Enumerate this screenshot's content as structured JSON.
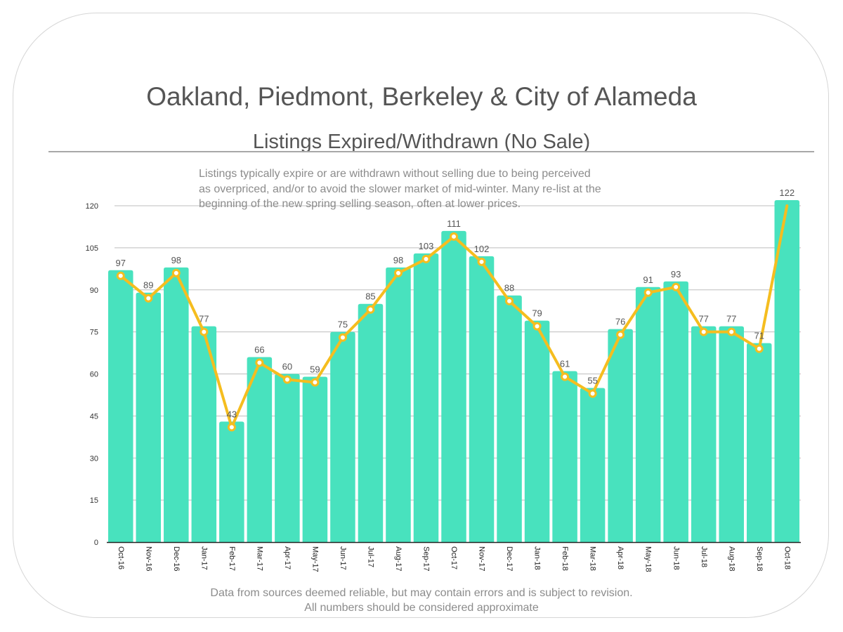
{
  "header": {
    "title": "Oakland, Piedmont, Berkeley & City of Alameda",
    "subtitle": "Listings Expired/Withdrawn (No Sale)"
  },
  "note": {
    "lines": [
      "Listings typically expire or are withdrawn without selling due to being perceived",
      "as overpriced, and/or to avoid the slower market of mid-winter.  Many re-list at the",
      "beginning of the new spring selling season, often at lower prices."
    ]
  },
  "footer": {
    "line1": "Data from sources deemed reliable, but may contain errors and is subject to revision.",
    "line2": "All numbers should be considered approximate"
  },
  "colors": {
    "bar": "#48e2be",
    "line": "#f5bd1f",
    "marker_fill": "#ffffff",
    "grid": "#bdbdbd",
    "text": "#555555"
  },
  "chart_data": {
    "type": "bar",
    "categories": [
      "Oct-16",
      "Nov-16",
      "Dec-16",
      "Jan-17",
      "Feb-17",
      "Mar-17",
      "Apr-17",
      "May-17",
      "Jun-17",
      "Jul-17",
      "Aug-17",
      "Sep-17",
      "Oct-17",
      "Nov-17",
      "Dec-17",
      "Jan-18",
      "Feb-18",
      "Mar-18",
      "Apr-18",
      "May-18",
      "Jun-18",
      "Jul-18",
      "Aug-18",
      "Sep-18",
      "Oct-18"
    ],
    "values": [
      97,
      89,
      98,
      77,
      43,
      66,
      60,
      59,
      75,
      85,
      98,
      103,
      111,
      102,
      88,
      79,
      61,
      55,
      76,
      91,
      93,
      77,
      77,
      71,
      122
    ],
    "line_overlay": true,
    "ylim": [
      0,
      120
    ],
    "yticks": [
      0,
      15,
      30,
      45,
      60,
      75,
      90,
      105,
      120
    ],
    "grid": true,
    "title": "Oakland, Piedmont, Berkeley & City of Alameda",
    "subtitle": "Listings Expired/Withdrawn (No Sale)"
  }
}
